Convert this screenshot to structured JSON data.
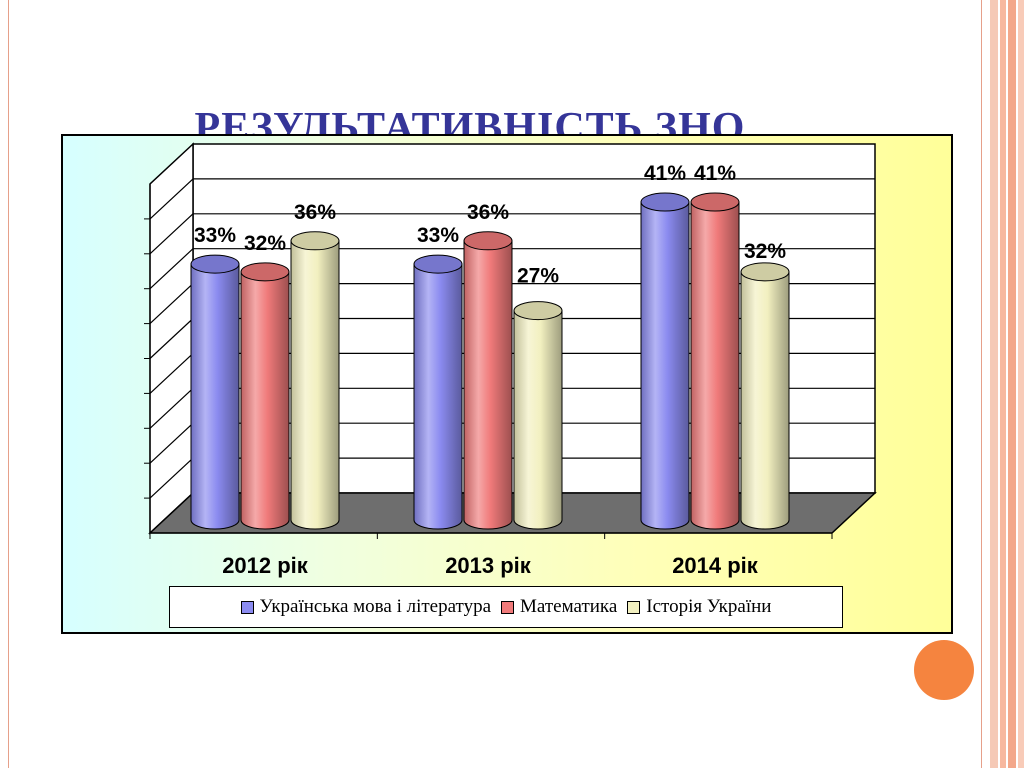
{
  "slide": {
    "title": "РЕЗУЛЬТАТИВНІСТЬ ЗНО"
  },
  "colors": {
    "accent_orange": "#f5843f",
    "title_color": "#353598"
  },
  "chart_data": {
    "type": "bar",
    "title": "",
    "xlabel": "",
    "ylabel": "",
    "categories": [
      "2012 рік",
      "2013 рік",
      "2014 рік"
    ],
    "series": [
      {
        "name": "Українська мова і література",
        "values": [
          33,
          33,
          41
        ],
        "labels": [
          "33%",
          "33%",
          "41%"
        ],
        "color": "#8b8bf0"
      },
      {
        "name": "Математика",
        "values": [
          32,
          36,
          41
        ],
        "labels": [
          "32%",
          "36%",
          "41%"
        ],
        "color": "#f07a7a"
      },
      {
        "name": "Історія України",
        "values": [
          36,
          27,
          32
        ],
        "labels": [
          "36%",
          "27%",
          "32%"
        ],
        "color": "#f2f0c0"
      }
    ],
    "ylim": [
      0,
      45
    ],
    "grid": true,
    "legend": "bottom"
  }
}
